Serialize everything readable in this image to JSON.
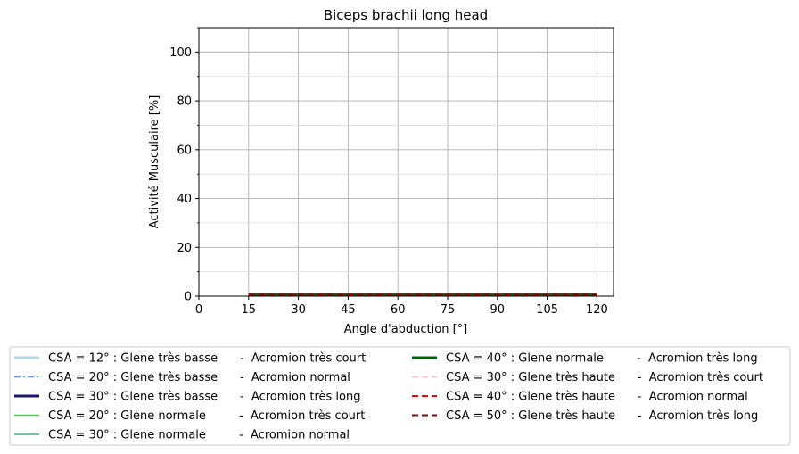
{
  "chart_data": {
    "type": "line",
    "title": "Biceps brachii long head",
    "xlabel": "Angle d'abduction [°]",
    "ylabel": "Activité Musculaire [%]",
    "xlim": [
      0,
      125
    ],
    "ylim": [
      0,
      110
    ],
    "xticks": [
      0,
      15,
      30,
      45,
      60,
      75,
      90,
      105,
      120
    ],
    "yticks": [
      0,
      20,
      40,
      60,
      80,
      100
    ],
    "grid": true,
    "legend_position": "bottom",
    "x": [
      15,
      30,
      45,
      60,
      75,
      90,
      105,
      120
    ],
    "series": [
      {
        "name": "CSA = 12° : Glene très basse      -  Acromion très court",
        "color": "#add8e6",
        "style": "solid",
        "width": 3,
        "values": [
          0.5,
          0.5,
          0.5,
          0.5,
          0.5,
          0.5,
          0.5,
          0.5
        ]
      },
      {
        "name": "CSA = 20° : Glene très basse      -  Acromion normal",
        "color": "#6495ed",
        "style": "dashdot",
        "width": 1.5,
        "values": [
          0.5,
          0.5,
          0.5,
          0.5,
          0.5,
          0.5,
          0.5,
          0.5
        ]
      },
      {
        "name": "CSA = 30° : Glene très basse      -  Acromion très long",
        "color": "#191970",
        "style": "solid",
        "width": 3,
        "values": [
          0.5,
          0.5,
          0.5,
          0.5,
          0.5,
          0.5,
          0.5,
          0.5
        ]
      },
      {
        "name": "CSA = 20° : Glene normale         -  Acromion très court",
        "color": "#00ff00",
        "style": "solid",
        "width": 1.5,
        "values": [
          0.5,
          0.5,
          0.5,
          0.5,
          0.5,
          0.5,
          0.5,
          0.5
        ]
      },
      {
        "name": "CSA = 30° : Glene normale         -  Acromion normal",
        "color": "#3cb371",
        "style": "solid",
        "width": 1.5,
        "values": [
          0.5,
          0.5,
          0.5,
          0.5,
          0.5,
          0.5,
          0.5,
          0.5
        ]
      },
      {
        "name": "CSA = 40° : Glene normale         -  Acromion très long",
        "color": "#006400",
        "style": "solid",
        "width": 3,
        "values": [
          0.5,
          0.5,
          0.5,
          0.5,
          0.5,
          0.5,
          0.5,
          0.5
        ]
      },
      {
        "name": "CSA = 30° : Glene très haute      -  Acromion très court",
        "color": "#ffc0cb",
        "style": "dashed",
        "width": 2,
        "values": [
          0.5,
          0.5,
          0.5,
          0.5,
          0.5,
          0.5,
          0.5,
          0.5
        ]
      },
      {
        "name": "CSA = 40° : Glene très haute      -  Acromion normal",
        "color": "#ff0000",
        "style": "dashed",
        "width": 2,
        "values": [
          0.5,
          0.5,
          0.5,
          0.5,
          0.5,
          0.5,
          0.5,
          0.5
        ]
      },
      {
        "name": "CSA = 50° : Glene très haute      -  Acromion très long",
        "color": "#8b0000",
        "style": "dashed",
        "width": 2,
        "values": [
          0.5,
          0.5,
          0.5,
          0.5,
          0.5,
          0.5,
          0.5,
          0.5
        ]
      }
    ]
  }
}
